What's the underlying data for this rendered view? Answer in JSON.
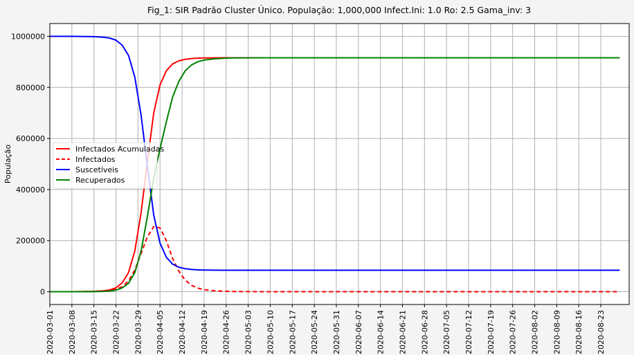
{
  "chart_data": {
    "type": "line",
    "title": "Fig_1: SIR Padrão Cluster Único. População: 1,000,000 Infect.Ini: 1.0     Ro: 2.5 Gama_inv: 3",
    "xlabel": "",
    "ylabel": "População",
    "ylim": [
      -50000,
      1050000
    ],
    "yticks": [
      "0",
      "200000",
      "400000",
      "600000",
      "800000",
      "1000000"
    ],
    "ytick_values": [
      0,
      200000,
      400000,
      600000,
      800000,
      1000000
    ],
    "xlim": [
      "2020-03-01",
      "2020-09-01"
    ],
    "xticks": [
      "2020-03-01",
      "2020-03-08",
      "2020-03-15",
      "2020-03-22",
      "2020-03-29",
      "2020-04-05",
      "2020-04-12",
      "2020-04-19",
      "2020-04-26",
      "2020-05-03",
      "2020-05-10",
      "2020-05-17",
      "2020-05-24",
      "2020-05-31",
      "2020-06-07",
      "2020-06-14",
      "2020-06-21",
      "2020-06-28",
      "2020-07-05",
      "2020-07-12",
      "2020-07-19",
      "2020-07-26",
      "2020-08-02",
      "2020-08-09",
      "2020-08-16",
      "2020-08-23"
    ],
    "grid": true,
    "legend_position": "center-left",
    "x": [
      "2020-03-01",
      "2020-03-04",
      "2020-03-08",
      "2020-03-12",
      "2020-03-15",
      "2020-03-18",
      "2020-03-20",
      "2020-03-22",
      "2020-03-24",
      "2020-03-26",
      "2020-03-28",
      "2020-03-30",
      "2020-04-01",
      "2020-04-03",
      "2020-04-05",
      "2020-04-07",
      "2020-04-09",
      "2020-04-11",
      "2020-04-13",
      "2020-04-15",
      "2020-04-17",
      "2020-04-19",
      "2020-04-22",
      "2020-04-25",
      "2020-04-28",
      "2020-05-03",
      "2020-05-10",
      "2020-05-24",
      "2020-06-07",
      "2020-06-21",
      "2020-07-05",
      "2020-07-19",
      "2020-08-02",
      "2020-08-16",
      "2020-08-29"
    ],
    "series": [
      {
        "name": "Infectados Acumuladas",
        "color": "#ff0000",
        "style": "solid",
        "values": [
          0,
          0,
          200,
          700,
          1500,
          3500,
          7000,
          15000,
          35000,
          75000,
          160000,
          310000,
          510000,
          700000,
          810000,
          865000,
          892000,
          904000,
          910000,
          913000,
          914500,
          915000,
          915500,
          916000,
          916000,
          916000,
          916000,
          916000,
          916000,
          916000,
          916000,
          916000,
          916000,
          916000,
          916000
        ]
      },
      {
        "name": "Infectados",
        "color": "#ff0000",
        "style": "dashed",
        "values": [
          0,
          0,
          150,
          500,
          1000,
          2300,
          4500,
          9000,
          20000,
          42000,
          85000,
          150000,
          215000,
          255000,
          250000,
          200000,
          130000,
          80000,
          45000,
          25000,
          14000,
          8000,
          4000,
          2000,
          1000,
          300,
          0,
          0,
          0,
          0,
          0,
          0,
          0,
          0,
          0
        ]
      },
      {
        "name": "Suscetíveis",
        "color": "#0000ff",
        "style": "solid",
        "values": [
          1000000,
          1000000,
          999800,
          999300,
          998500,
          996500,
          993000,
          985000,
          965000,
          925000,
          840000,
          690000,
          490000,
          300000,
          190000,
          135000,
          108000,
          96000,
          90000,
          87000,
          85500,
          85000,
          84500,
          84000,
          84000,
          84000,
          84000,
          84000,
          84000,
          84000,
          84000,
          84000,
          84000,
          84000,
          84000
        ]
      },
      {
        "name": "Recuperados",
        "color": "#008000",
        "style": "solid",
        "values": [
          0,
          0,
          50,
          200,
          500,
          1200,
          2500,
          6000,
          15000,
          33000,
          75000,
          160000,
          295000,
          445000,
          560000,
          665000,
          762000,
          824000,
          865000,
          888000,
          900500,
          907000,
          911500,
          914000,
          915000,
          915700,
          916000,
          916000,
          916000,
          916000,
          916000,
          916000,
          916000,
          916000,
          916000
        ]
      }
    ]
  }
}
